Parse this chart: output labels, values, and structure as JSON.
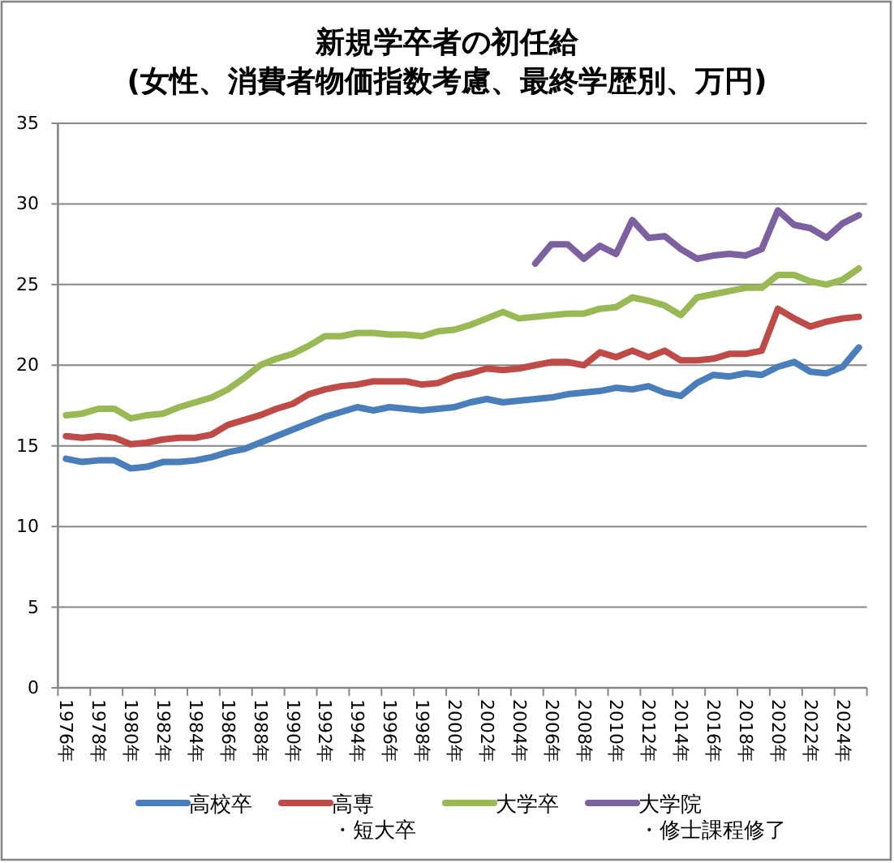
{
  "chart_data": {
    "type": "line",
    "title": "新規学卒者の初任給",
    "subtitle": "(女性、消費者物価指数考慮、最終学歴別、万円)",
    "categories": [
      "1976年",
      null,
      "1978年",
      null,
      "1980年",
      null,
      "1982年",
      null,
      "1984年",
      null,
      "1986年",
      null,
      "1988年",
      null,
      "1990年",
      null,
      "1992年",
      null,
      "1994年",
      null,
      "1996年",
      null,
      "1998年",
      null,
      "2000年",
      null,
      "2002年",
      null,
      "2004年",
      null,
      "2006年",
      null,
      "2008年",
      null,
      "2010年",
      null,
      "2012年",
      null,
      "2014年",
      null,
      "2016年",
      null,
      "2018年",
      null,
      "2020年",
      null,
      "2022年",
      null,
      "2024年",
      null
    ],
    "series": [
      {
        "name": "高校卒",
        "color": "#4a7ebb",
        "values": [
          14.2,
          14.0,
          14.1,
          14.1,
          13.6,
          13.7,
          14.0,
          14.0,
          14.1,
          14.3,
          14.6,
          14.8,
          15.2,
          15.6,
          16.0,
          16.4,
          16.8,
          17.1,
          17.4,
          17.2,
          17.4,
          17.3,
          17.2,
          17.3,
          17.4,
          17.7,
          17.9,
          17.7,
          17.8,
          17.9,
          18.0,
          18.2,
          18.3,
          18.4,
          18.6,
          18.5,
          18.7,
          18.3,
          18.1,
          18.9,
          19.4,
          19.3,
          19.5,
          19.4,
          19.9,
          20.2,
          19.6,
          19.5,
          19.9,
          21.1
        ]
      },
      {
        "name": "高専・短大卒",
        "color": "#be4b48",
        "values": [
          15.6,
          15.5,
          15.6,
          15.5,
          15.1,
          15.2,
          15.4,
          15.5,
          15.5,
          15.7,
          16.3,
          16.6,
          16.9,
          17.3,
          17.6,
          18.2,
          18.5,
          18.7,
          18.8,
          19.0,
          19.0,
          19.0,
          18.8,
          18.9,
          19.3,
          19.5,
          19.8,
          19.7,
          19.8,
          20.0,
          20.2,
          20.2,
          20.0,
          20.8,
          20.5,
          20.9,
          20.5,
          20.9,
          20.3,
          20.3,
          20.4,
          20.7,
          20.7,
          20.9,
          23.5,
          22.9,
          22.4,
          22.7,
          22.9,
          23.0
        ]
      },
      {
        "name": "大学卒",
        "color": "#98b954",
        "values": [
          16.9,
          17.0,
          17.3,
          17.3,
          16.7,
          16.9,
          17.0,
          17.4,
          17.7,
          18.0,
          18.5,
          19.2,
          20.0,
          20.4,
          20.7,
          21.2,
          21.8,
          21.8,
          22.0,
          22.0,
          21.9,
          21.9,
          21.8,
          22.1,
          22.2,
          22.5,
          22.9,
          23.3,
          22.9,
          23.0,
          23.1,
          23.2,
          23.2,
          23.5,
          23.6,
          24.2,
          24.0,
          23.7,
          23.1,
          24.2,
          24.4,
          24.6,
          24.8,
          24.8,
          25.6,
          25.6,
          25.2,
          25.0,
          25.3,
          26.0
        ]
      },
      {
        "name": "大学院・修士課程修了",
        "color": "#7d60a0",
        "values": [
          null,
          null,
          null,
          null,
          null,
          null,
          null,
          null,
          null,
          null,
          null,
          null,
          null,
          null,
          null,
          null,
          null,
          null,
          null,
          null,
          null,
          null,
          null,
          null,
          null,
          null,
          null,
          null,
          null,
          26.3,
          27.5,
          27.5,
          26.6,
          27.4,
          26.9,
          29.0,
          27.9,
          28.0,
          27.2,
          26.6,
          26.8,
          26.9,
          26.8,
          27.2,
          29.6,
          28.7,
          28.5,
          27.9,
          28.8,
          29.3
        ]
      }
    ],
    "ylim": [
      0,
      35
    ],
    "yticks": [
      0,
      5,
      10,
      15,
      20,
      25,
      30,
      35
    ],
    "grid": "y",
    "legend": "bottom"
  }
}
